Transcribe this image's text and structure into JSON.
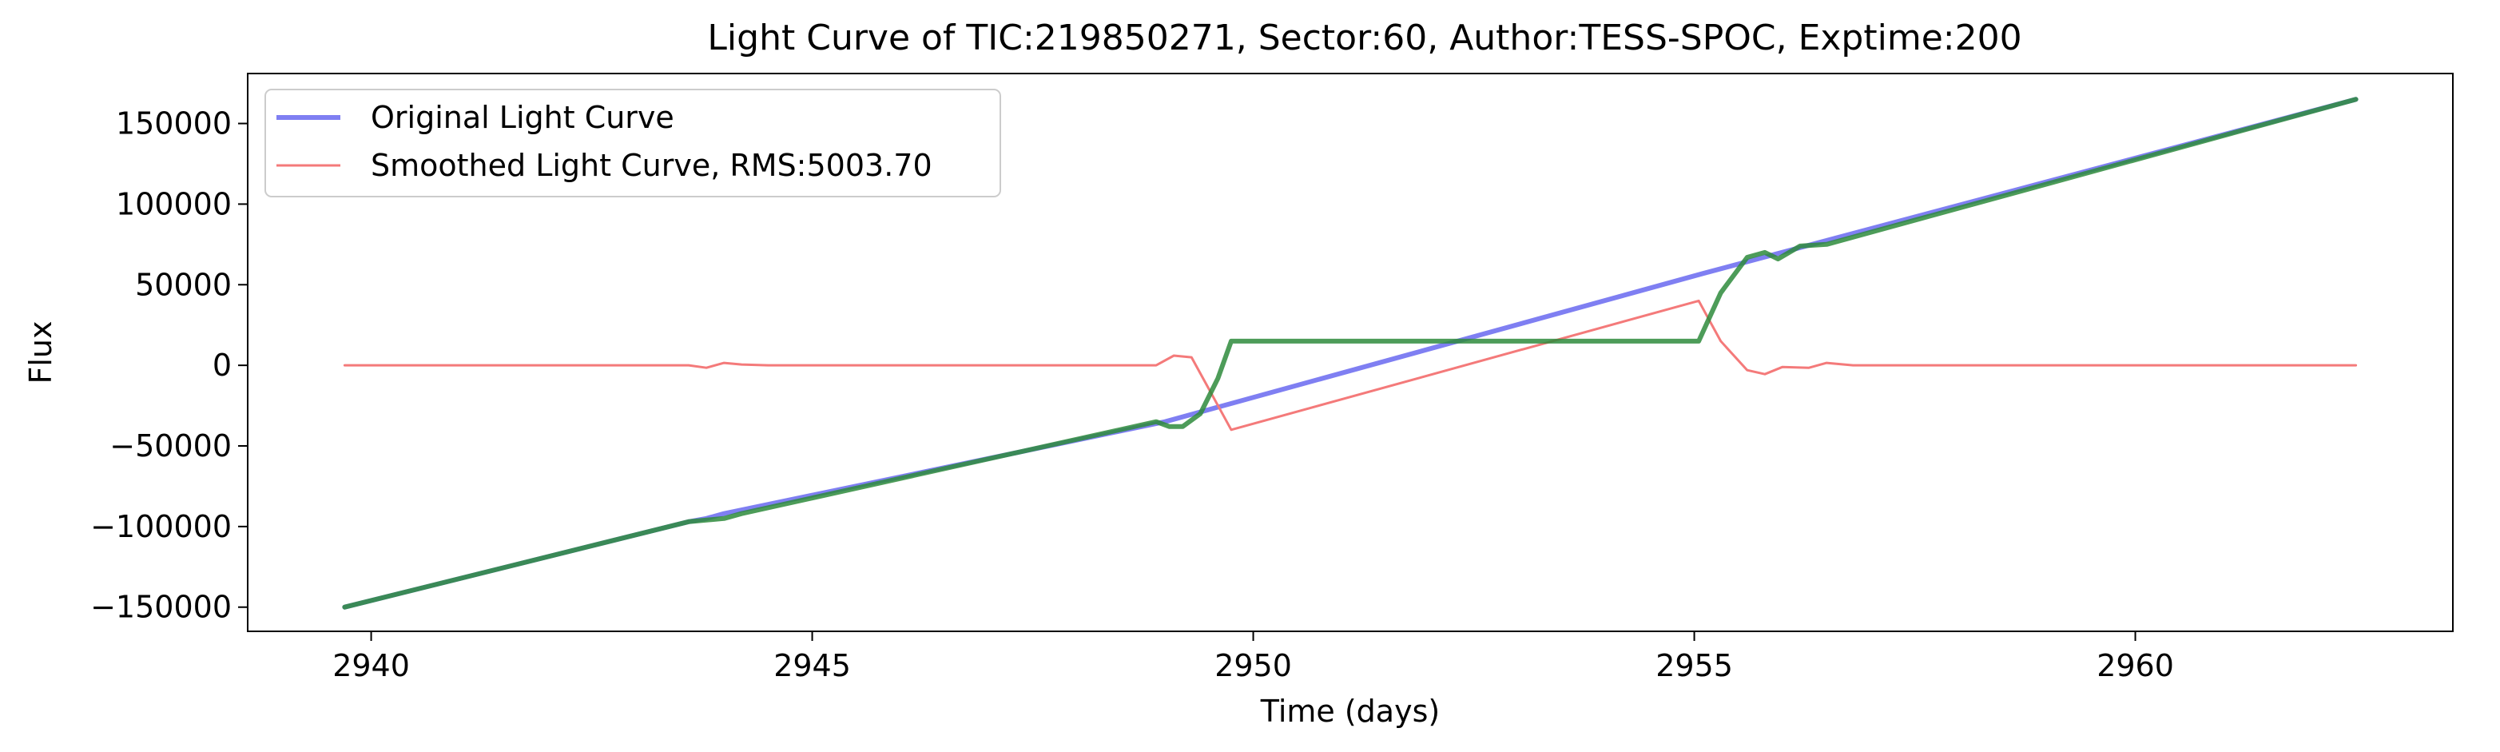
{
  "chart_data": {
    "type": "line",
    "title": "Light Curve of TIC:219850271, Sector:60, Author:TESS-SPOC, Exptime:200",
    "xlabel": "Time (days)",
    "ylabel": "Flux",
    "xlim": [
      2938.6,
      2963.6
    ],
    "ylim": [
      -165000,
      181000
    ],
    "x_ticks": [
      2940,
      2945,
      2950,
      2955,
      2960
    ],
    "y_ticks": [
      -150000,
      -100000,
      -50000,
      0,
      50000,
      100000,
      150000
    ],
    "x_tick_labels": [
      "2940",
      "2945",
      "2950",
      "2955",
      "2960"
    ],
    "y_tick_labels": [
      "−150000",
      "−100000",
      "−50000",
      "0",
      "50000",
      "100000",
      "150000"
    ],
    "grid": false,
    "legend_position": "top-left",
    "series": [
      {
        "name": "Original Light Curve",
        "color": "#7f7ff2",
        "x": [
          2939.7,
          2943.6,
          2943.8,
          2944.0,
          2949.0,
          2955.1,
          2962.5
        ],
        "y": [
          -150000,
          -97000,
          -95000,
          -92000,
          -35000,
          57000,
          165000
        ]
      },
      {
        "name": "Smoothed Light Curve, RMS:5003.70",
        "color": "#f47a7a",
        "x": [
          2939.7,
          2943.6,
          2943.8,
          2944.0,
          2944.2,
          2944.5,
          2948.9,
          2949.1,
          2949.3,
          2949.5,
          2949.75,
          2955.05,
          2955.3,
          2955.6,
          2955.8,
          2956.0,
          2956.3,
          2956.5,
          2956.8,
          2962.5
        ],
        "y": [
          0,
          0,
          -1500,
          1500,
          500,
          0,
          0,
          6000,
          5000,
          -15000,
          -40000,
          40000,
          15000,
          -3000,
          -5500,
          -1000,
          -1500,
          1500,
          0,
          0
        ]
      },
      {
        "name": "",
        "color": "#2e8b3c",
        "x": [
          2939.7,
          2943.6,
          2944.0,
          2944.2,
          2948.9,
          2949.05,
          2949.2,
          2949.4,
          2949.6,
          2949.75,
          2955.05,
          2955.3,
          2955.6,
          2955.8,
          2955.95,
          2956.2,
          2956.5,
          2962.5
        ],
        "y": [
          -150000,
          -97000,
          -95000,
          -92000,
          -35000,
          -38000,
          -38000,
          -30000,
          -8000,
          15000,
          15000,
          45000,
          67000,
          70000,
          66000,
          74000,
          75000,
          165000
        ]
      }
    ]
  }
}
